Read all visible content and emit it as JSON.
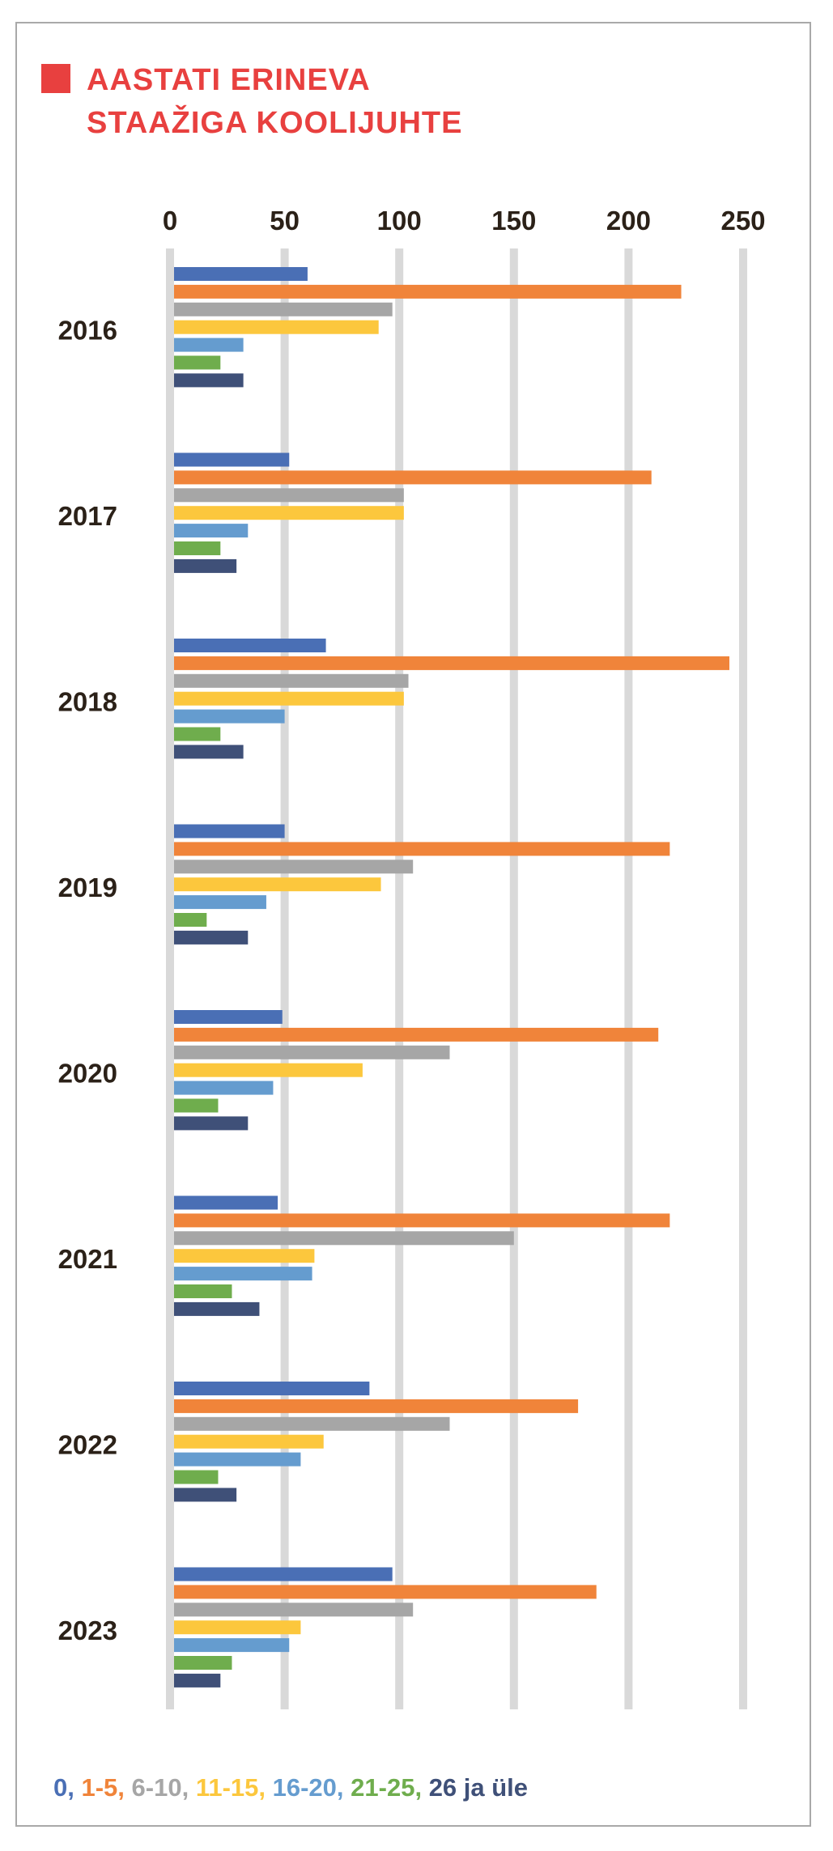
{
  "title": {
    "line1": "AASTATI ERINEVA",
    "line2": "STAAŽIGA KOOLIJUHTE",
    "color": "#e8403f"
  },
  "chart_data": {
    "type": "bar",
    "orientation": "horizontal",
    "title": "AASTATI ERINEVA STAAŽIGA KOOLIJUHTE",
    "categories": [
      "2016",
      "2017",
      "2018",
      "2019",
      "2020",
      "2021",
      "2022",
      "2023"
    ],
    "x_ticks": [
      "0",
      "50",
      "100",
      "150",
      "200",
      "250"
    ],
    "xlim": [
      0,
      250
    ],
    "x_axis_position": "top",
    "grid": true,
    "legend_position": "bottom",
    "series": [
      {
        "name": "0",
        "color": "#4a6fb5",
        "values": [
          60,
          52,
          68,
          50,
          49,
          47,
          87,
          97
        ]
      },
      {
        "name": "1-5",
        "color": "#f0843a",
        "values": [
          223,
          210,
          244,
          218,
          213,
          218,
          178,
          186
        ]
      },
      {
        "name": "6-10",
        "color": "#a6a6a6",
        "values": [
          97,
          102,
          104,
          106,
          122,
          150,
          122,
          106
        ]
      },
      {
        "name": "11-15",
        "color": "#fcc73d",
        "values": [
          91,
          102,
          102,
          92,
          84,
          63,
          67,
          57
        ]
      },
      {
        "name": "16-20",
        "color": "#659ccf",
        "values": [
          32,
          34,
          50,
          42,
          45,
          62,
          57,
          52
        ]
      },
      {
        "name": "21-25",
        "color": "#6fad4d",
        "values": [
          22,
          22,
          22,
          16,
          21,
          27,
          21,
          27
        ]
      },
      {
        "name": "26 ja üle",
        "color": "#3f5078",
        "values": [
          32,
          29,
          32,
          34,
          34,
          39,
          29,
          22
        ]
      }
    ]
  },
  "legend": {
    "items": [
      {
        "label": "0",
        "sep": ", ",
        "color": "#4a6fb5"
      },
      {
        "label": "1-5",
        "sep": ", ",
        "color": "#f0843a"
      },
      {
        "label": "6-10",
        "sep": ", ",
        "color": "#a6a6a6"
      },
      {
        "label": "11-15",
        "sep": ", ",
        "color": "#fcc73d"
      },
      {
        "label": "16-20",
        "sep": ", ",
        "color": "#659ccf"
      },
      {
        "label": "21-25",
        "sep": ", ",
        "color": "#6fad4d"
      },
      {
        "label": "26 ja üle",
        "sep": "",
        "color": "#3f5078"
      }
    ]
  },
  "colors": {
    "axis_text": "#2b2118",
    "grid": "#d9d9d9",
    "frame": "#a9a9a9"
  }
}
